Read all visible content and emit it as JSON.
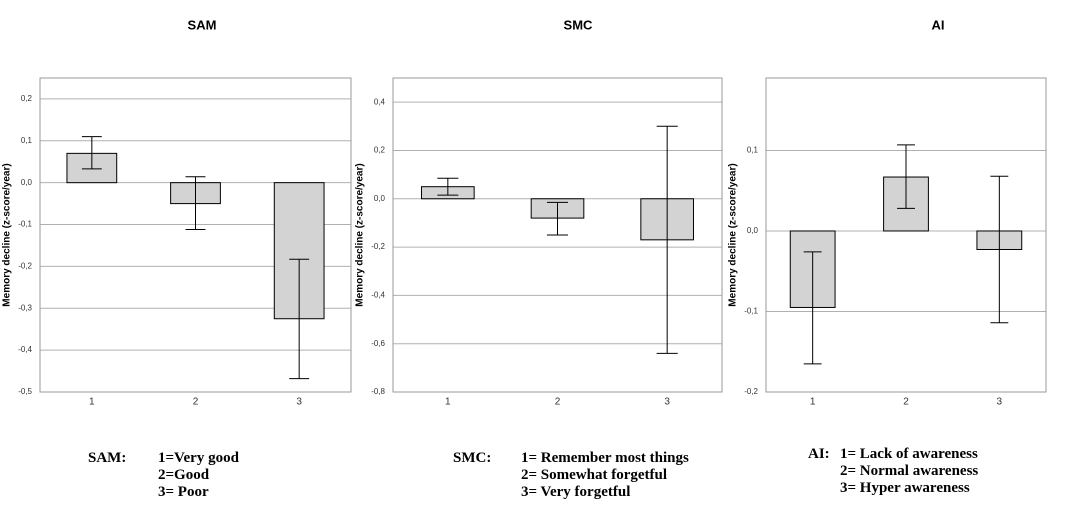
{
  "chart_data": [
    {
      "type": "bar",
      "title": "SAM",
      "ylabel": "Memory decline (z-score/year)",
      "xlabel": "",
      "categories": [
        "1",
        "2",
        "3"
      ],
      "values": [
        0.07,
        -0.05,
        -0.325
      ],
      "error_low": [
        0.033,
        -0.112,
        -0.468
      ],
      "error_high": [
        0.11,
        0.014,
        -0.183
      ],
      "ylim": [
        -0.5,
        0.25
      ],
      "yticks": [
        0.2,
        0.1,
        0.0,
        -0.1,
        -0.2,
        -0.3,
        -0.4,
        -0.5
      ],
      "ytick_labels": [
        "0,2",
        "0,1",
        "0,0",
        "-0,1",
        "-0,2",
        "-0,3",
        "-0,4",
        "-0,5"
      ],
      "grid": true
    },
    {
      "type": "bar",
      "title": "SMC",
      "ylabel": "Memory decline (z-score/year)",
      "xlabel": "",
      "categories": [
        "1",
        "2",
        "3"
      ],
      "values": [
        0.05,
        -0.08,
        -0.17
      ],
      "error_low": [
        0.015,
        -0.15,
        -0.64
      ],
      "error_high": [
        0.085,
        -0.015,
        0.3
      ],
      "ylim": [
        -0.8,
        0.5
      ],
      "yticks": [
        0.4,
        0.2,
        0.0,
        -0.2,
        -0.4,
        -0.6,
        -0.8
      ],
      "ytick_labels": [
        "0,4",
        "0,2",
        "0,0",
        "-0,2",
        "-0,4",
        "-0,6",
        "-0,8"
      ],
      "grid": true
    },
    {
      "type": "bar",
      "title": "AI",
      "ylabel": "Memory decline (z-score/year)",
      "xlabel": "",
      "categories": [
        "1",
        "2",
        "3"
      ],
      "values": [
        -0.095,
        0.067,
        -0.023
      ],
      "error_low": [
        -0.165,
        0.028,
        -0.114
      ],
      "error_high": [
        -0.026,
        0.107,
        0.068
      ],
      "ylim": [
        -0.2,
        0.19
      ],
      "yticks": [
        0.1,
        0.0,
        -0.1,
        -0.2
      ],
      "ytick_labels": [
        "0,1",
        "0,0",
        "-0,1",
        "-0,2"
      ],
      "grid": true
    }
  ],
  "legends": [
    {
      "key": "SAM:",
      "items": [
        "1=Very good",
        "2=Good",
        "3= Poor"
      ]
    },
    {
      "key": "SMC:",
      "items": [
        "1= Remember most things",
        "2= Somewhat forgetful",
        "3= Very forgetful"
      ]
    },
    {
      "key": "AI:",
      "items": [
        "1= Lack of awareness",
        "2= Normal awareness",
        "3= Hyper awareness"
      ]
    }
  ],
  "colors": {
    "bar_fill": "#d3d3d3",
    "bar_stroke": "#000000",
    "grid": "#b0b0b0",
    "frame": "#9a9a9a"
  }
}
